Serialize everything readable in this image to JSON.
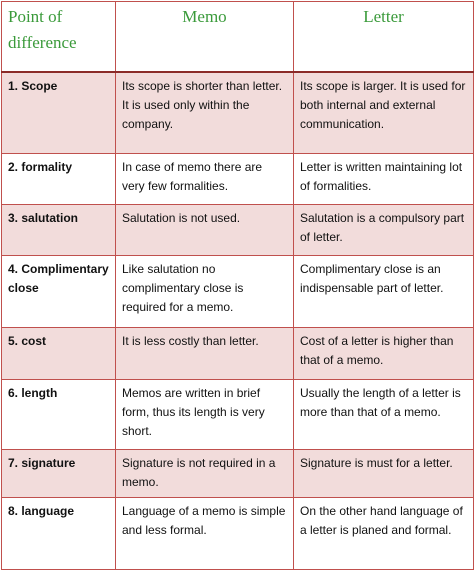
{
  "table": {
    "header": [
      "Point of difference",
      "Memo",
      "Letter"
    ],
    "rows": [
      [
        "1. Scope",
        "Its scope is shorter than letter. It is used only within the company.",
        "Its scope is larger. It is used for both internal and external communication."
      ],
      [
        "2. formality",
        "In case of memo there are very few formalities.",
        "Letter is written maintaining lot of formalities."
      ],
      [
        "3. salutation",
        "Salutation is not used.",
        "Salutation is a compulsory part of letter."
      ],
      [
        "4. Complimentary close",
        "Like salutation no complimentary close is required for a memo.",
        "Complimentary close is an indispensable part of letter."
      ],
      [
        "5. cost",
        "It is less costly than letter.",
        "Cost of a letter is higher than that of a memo."
      ],
      [
        "6. length",
        "Memos are written in brief form, thus its length is very short.",
        "Usually the length of a letter is more than that of a memo."
      ],
      [
        "7. signature",
        "Signature is not required in a memo.",
        "Signature is must for a letter."
      ],
      [
        "8. language",
        "Language of a memo is simple and less formal.",
        "On the other hand language of a letter is planed and formal."
      ]
    ]
  }
}
